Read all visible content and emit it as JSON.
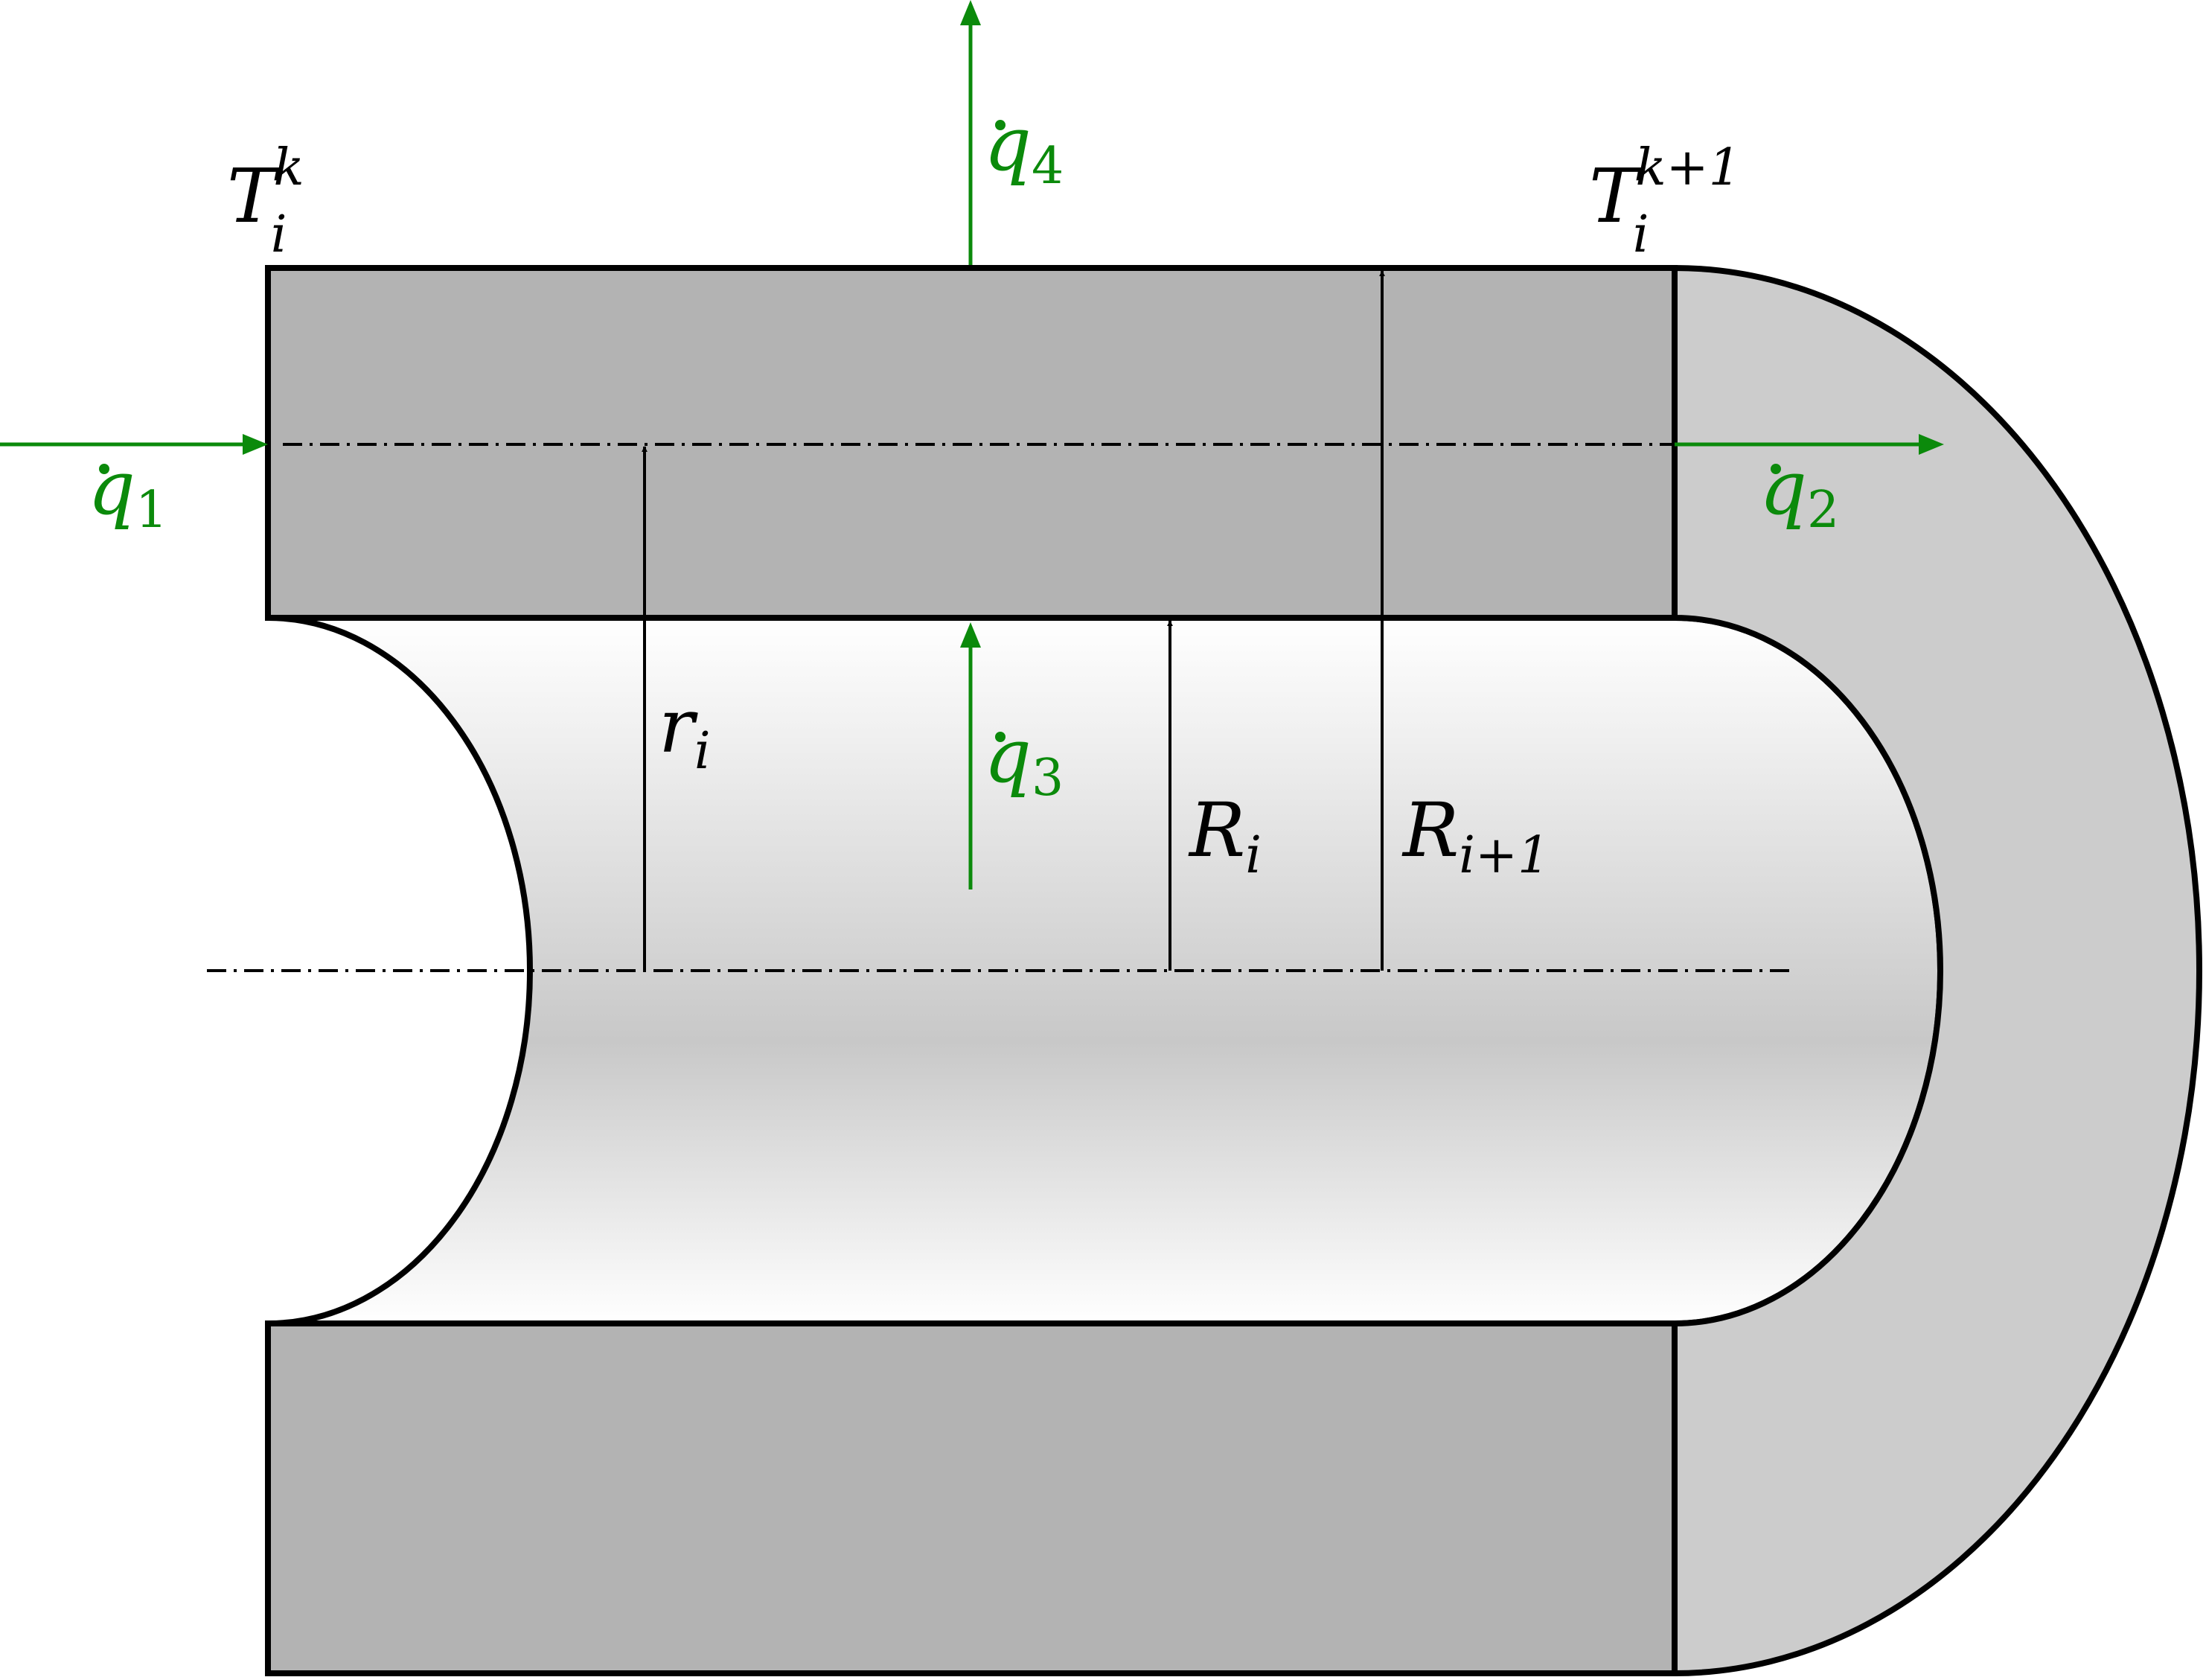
{
  "labels": {
    "T_left": {
      "base": "T",
      "sub": "i",
      "sup": "k"
    },
    "T_right": {
      "base": "T",
      "sub": "i",
      "sup": "k+1"
    },
    "q1": {
      "base": "q",
      "sub": "1"
    },
    "q2": {
      "base": "q",
      "sub": "2"
    },
    "q3": {
      "base": "q",
      "sub": "3"
    },
    "q4": {
      "base": "q",
      "sub": "4"
    },
    "r_i": {
      "base": "r",
      "sub": "i"
    },
    "R_i": {
      "base": "R",
      "sub": "i"
    },
    "R_i1": {
      "base": "R",
      "sub": "i+1"
    }
  },
  "colors": {
    "heat_flux": "#0b8a0b",
    "outline": "#000000",
    "wall": "#b3b3b3",
    "wall_end": "#cccccc",
    "bore_light": "#ffffff",
    "bore_dark": "#c8c8c8"
  }
}
